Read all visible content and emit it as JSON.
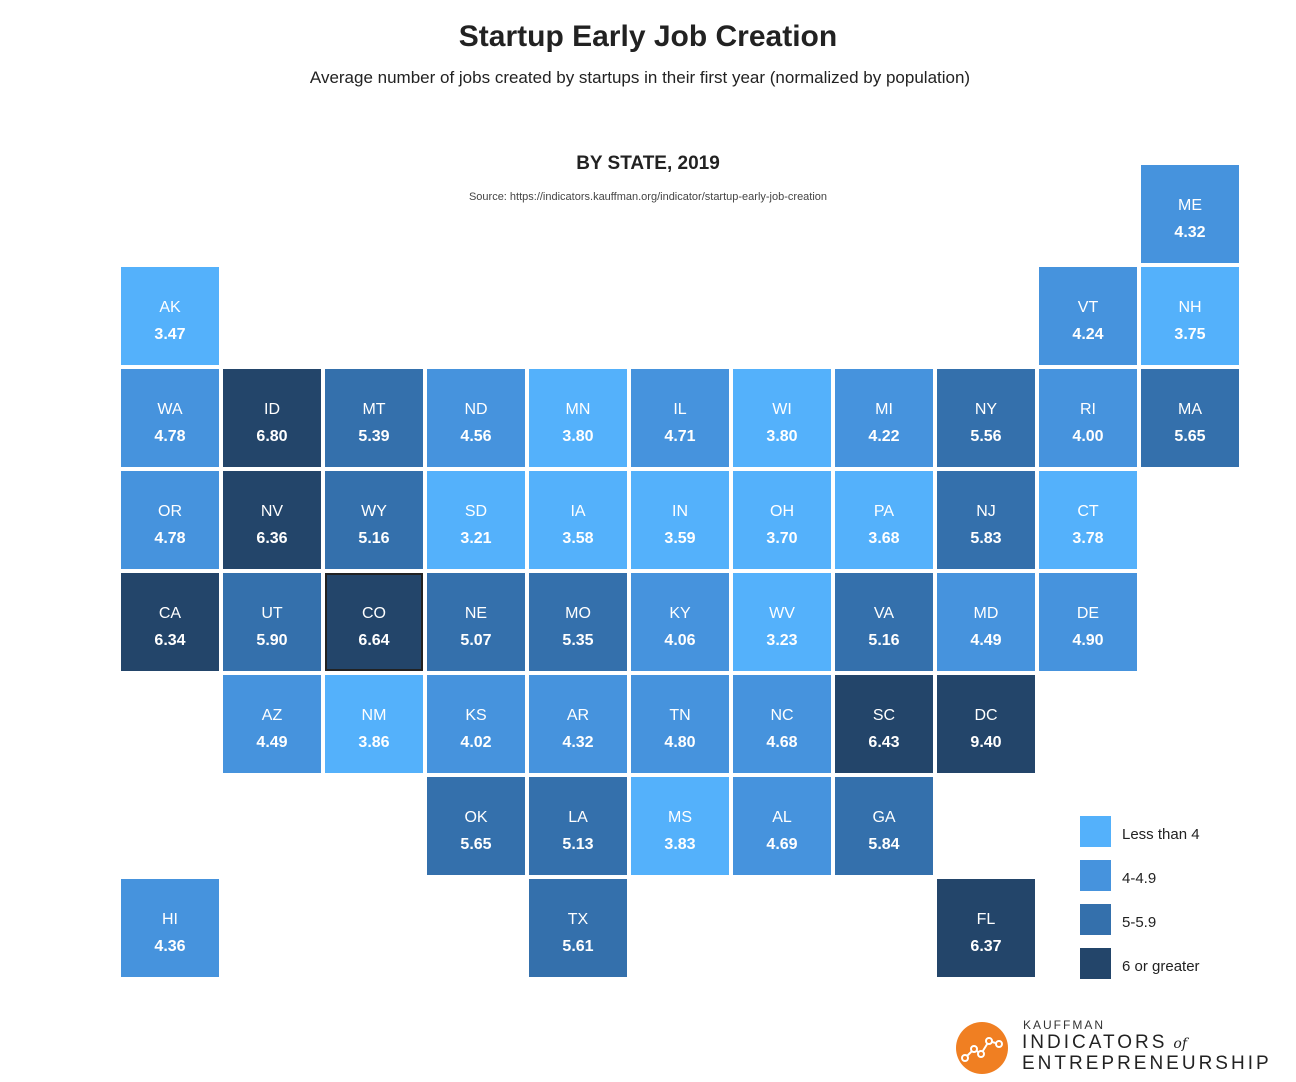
{
  "header": {
    "title": "Startup Early Job Creation",
    "subtitle": "Average number of jobs created by startups in their first year (normalized by population)",
    "section_title": "BY STATE, 2019",
    "source": "Source: https://indicators.kauffman.org/indicator/startup-early-job-creation"
  },
  "colors": {
    "light": "#54b1fb",
    "medium": "#4693dd",
    "dark": "#3470ac",
    "darkest": "#23456a"
  },
  "legend": [
    {
      "label": "Less than 4",
      "color": "#54b1fb"
    },
    {
      "label": "4-4.9",
      "color": "#4693dd"
    },
    {
      "label": "5-5.9",
      "color": "#3470ac"
    },
    {
      "label": "6 or greater",
      "color": "#23456a"
    }
  ],
  "states": [
    {
      "abbr": "ME",
      "value": "4.32",
      "row": 0,
      "col": 10
    },
    {
      "abbr": "AK",
      "value": "3.47",
      "row": 1,
      "col": 0
    },
    {
      "abbr": "VT",
      "value": "4.24",
      "row": 1,
      "col": 9
    },
    {
      "abbr": "NH",
      "value": "3.75",
      "row": 1,
      "col": 10
    },
    {
      "abbr": "WA",
      "value": "4.78",
      "row": 2,
      "col": 0
    },
    {
      "abbr": "ID",
      "value": "6.80",
      "row": 2,
      "col": 1
    },
    {
      "abbr": "MT",
      "value": "5.39",
      "row": 2,
      "col": 2
    },
    {
      "abbr": "ND",
      "value": "4.56",
      "row": 2,
      "col": 3
    },
    {
      "abbr": "MN",
      "value": "3.80",
      "row": 2,
      "col": 4
    },
    {
      "abbr": "IL",
      "value": "4.71",
      "row": 2,
      "col": 5
    },
    {
      "abbr": "WI",
      "value": "3.80",
      "row": 2,
      "col": 6
    },
    {
      "abbr": "MI",
      "value": "4.22",
      "row": 2,
      "col": 7
    },
    {
      "abbr": "NY",
      "value": "5.56",
      "row": 2,
      "col": 8
    },
    {
      "abbr": "RI",
      "value": "4.00",
      "row": 2,
      "col": 9
    },
    {
      "abbr": "MA",
      "value": "5.65",
      "row": 2,
      "col": 10
    },
    {
      "abbr": "OR",
      "value": "4.78",
      "row": 3,
      "col": 0
    },
    {
      "abbr": "NV",
      "value": "6.36",
      "row": 3,
      "col": 1
    },
    {
      "abbr": "WY",
      "value": "5.16",
      "row": 3,
      "col": 2
    },
    {
      "abbr": "SD",
      "value": "3.21",
      "row": 3,
      "col": 3
    },
    {
      "abbr": "IA",
      "value": "3.58",
      "row": 3,
      "col": 4
    },
    {
      "abbr": "IN",
      "value": "3.59",
      "row": 3,
      "col": 5
    },
    {
      "abbr": "OH",
      "value": "3.70",
      "row": 3,
      "col": 6
    },
    {
      "abbr": "PA",
      "value": "3.68",
      "row": 3,
      "col": 7
    },
    {
      "abbr": "NJ",
      "value": "5.83",
      "row": 3,
      "col": 8
    },
    {
      "abbr": "CT",
      "value": "3.78",
      "row": 3,
      "col": 9
    },
    {
      "abbr": "CA",
      "value": "6.34",
      "row": 4,
      "col": 0
    },
    {
      "abbr": "UT",
      "value": "5.90",
      "row": 4,
      "col": 1
    },
    {
      "abbr": "CO",
      "value": "6.64",
      "row": 4,
      "col": 2,
      "selected": true
    },
    {
      "abbr": "NE",
      "value": "5.07",
      "row": 4,
      "col": 3
    },
    {
      "abbr": "MO",
      "value": "5.35",
      "row": 4,
      "col": 4
    },
    {
      "abbr": "KY",
      "value": "4.06",
      "row": 4,
      "col": 5
    },
    {
      "abbr": "WV",
      "value": "3.23",
      "row": 4,
      "col": 6
    },
    {
      "abbr": "VA",
      "value": "5.16",
      "row": 4,
      "col": 7
    },
    {
      "abbr": "MD",
      "value": "4.49",
      "row": 4,
      "col": 8
    },
    {
      "abbr": "DE",
      "value": "4.90",
      "row": 4,
      "col": 9
    },
    {
      "abbr": "AZ",
      "value": "4.49",
      "row": 5,
      "col": 1
    },
    {
      "abbr": "NM",
      "value": "3.86",
      "row": 5,
      "col": 2
    },
    {
      "abbr": "KS",
      "value": "4.02",
      "row": 5,
      "col": 3
    },
    {
      "abbr": "AR",
      "value": "4.32",
      "row": 5,
      "col": 4
    },
    {
      "abbr": "TN",
      "value": "4.80",
      "row": 5,
      "col": 5
    },
    {
      "abbr": "NC",
      "value": "4.68",
      "row": 5,
      "col": 6
    },
    {
      "abbr": "SC",
      "value": "6.43",
      "row": 5,
      "col": 7
    },
    {
      "abbr": "DC",
      "value": "9.40",
      "row": 5,
      "col": 8
    },
    {
      "abbr": "OK",
      "value": "5.65",
      "row": 6,
      "col": 3
    },
    {
      "abbr": "LA",
      "value": "5.13",
      "row": 6,
      "col": 4
    },
    {
      "abbr": "MS",
      "value": "3.83",
      "row": 6,
      "col": 5
    },
    {
      "abbr": "AL",
      "value": "4.69",
      "row": 6,
      "col": 6
    },
    {
      "abbr": "GA",
      "value": "5.84",
      "row": 6,
      "col": 7
    },
    {
      "abbr": "HI",
      "value": "4.36",
      "row": 7,
      "col": 0
    },
    {
      "abbr": "TX",
      "value": "5.61",
      "row": 7,
      "col": 4
    },
    {
      "abbr": "FL",
      "value": "6.37",
      "row": 7,
      "col": 8
    }
  ],
  "logo": {
    "brand": "KAUFFMAN",
    "line1": "INDICATORS",
    "of": "of",
    "line2": "ENTREPRENEURSHIP",
    "mark_color": "#f07f22"
  }
}
